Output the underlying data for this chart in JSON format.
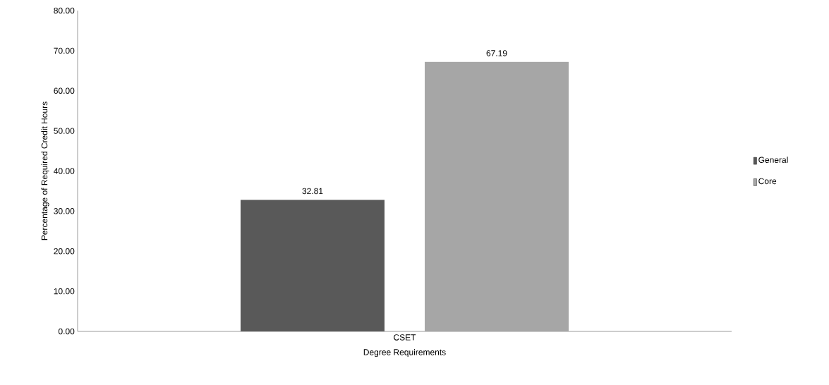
{
  "chart_data": {
    "type": "bar",
    "xlabel": "Degree Requirements",
    "ylabel": "Percentage of Required Credit Hours",
    "categories": [
      "CSET"
    ],
    "series": [
      {
        "name": "General",
        "color": "#595959",
        "values": [
          32.81
        ]
      },
      {
        "name": "Core",
        "color": "#a6a6a6",
        "values": [
          67.19
        ]
      }
    ],
    "ylim": [
      0,
      80
    ],
    "yticks": [
      {
        "value": 0,
        "label": "0.00"
      },
      {
        "value": 10,
        "label": "10.00"
      },
      {
        "value": 20,
        "label": "20.00"
      },
      {
        "value": 30,
        "label": "30.00"
      },
      {
        "value": 40,
        "label": "40.00"
      },
      {
        "value": 50,
        "label": "50.00"
      },
      {
        "value": 60,
        "label": "60.00"
      },
      {
        "value": 70,
        "label": "70.00"
      },
      {
        "value": 80,
        "label": "80.00"
      }
    ],
    "data_labels": true,
    "legend": "right",
    "grid": false
  }
}
